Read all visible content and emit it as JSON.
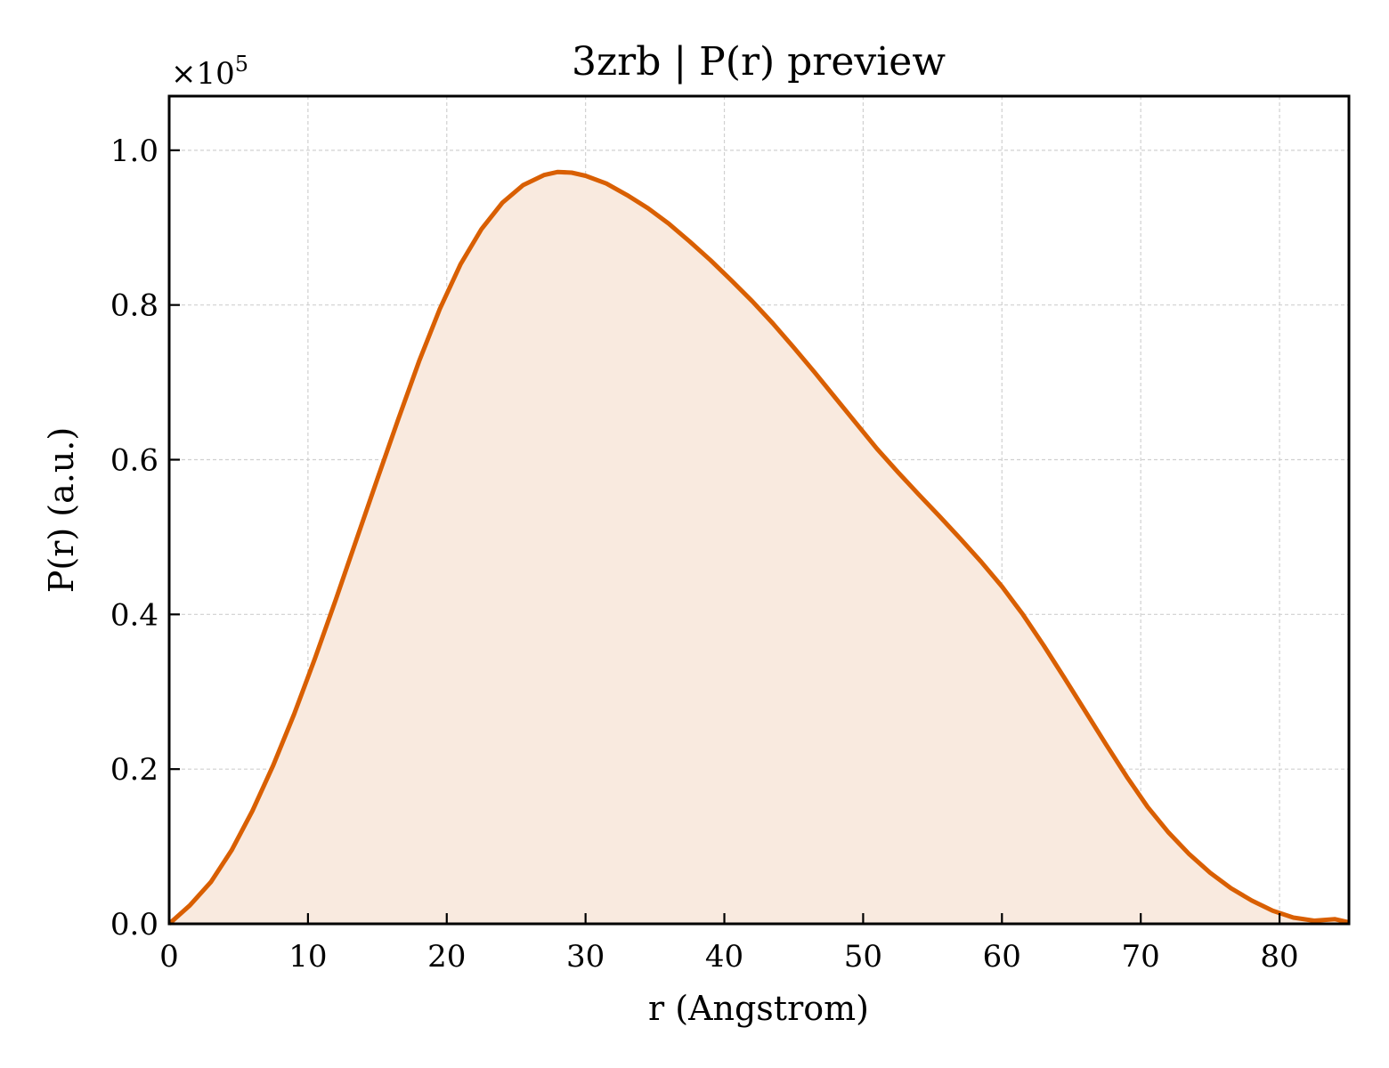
{
  "chart_data": {
    "type": "area",
    "title": "3zrb | P(r) preview",
    "xlabel": "r (Angstrom)",
    "ylabel": "P(r) (a.u.)",
    "y_multiplier_base": "×10",
    "y_multiplier_exp": "5",
    "xlim": [
      0,
      85
    ],
    "ylim": [
      0,
      1.07
    ],
    "x_ticks": [
      0,
      10,
      20,
      30,
      40,
      50,
      60,
      70,
      80
    ],
    "x_tick_labels": [
      "0",
      "10",
      "20",
      "30",
      "40",
      "50",
      "60",
      "70",
      "80"
    ],
    "y_ticks": [
      0,
      0.2,
      0.4,
      0.6,
      0.8,
      1.0
    ],
    "y_tick_labels": [
      "0.0",
      "0.2",
      "0.4",
      "0.6",
      "0.8",
      "1.0"
    ],
    "grid": true,
    "line_color": "#d95f02",
    "fill_color": "#f9eadf",
    "series": [
      {
        "x": [
          0,
          1.5,
          3,
          4.5,
          6,
          7.5,
          9,
          10.5,
          12,
          13.5,
          15,
          16.5,
          18,
          19.5,
          21,
          22.5,
          24,
          25.5,
          27,
          28,
          29,
          30,
          31.5,
          33,
          34.5,
          36,
          37.5,
          39,
          40.5,
          42,
          43.5,
          45,
          46.5,
          48,
          49.5,
          51,
          52.5,
          54,
          55.5,
          57,
          58.5,
          60,
          61.5,
          63,
          64.5,
          66,
          67.5,
          69,
          70.5,
          72,
          73.5,
          75,
          76.5,
          78,
          79.5,
          81,
          82.5,
          84,
          85
        ],
        "y": [
          0.0,
          0.024,
          0.054,
          0.095,
          0.146,
          0.205,
          0.271,
          0.343,
          0.419,
          0.497,
          0.575,
          0.652,
          0.727,
          0.795,
          0.853,
          0.898,
          0.932,
          0.955,
          0.968,
          0.972,
          0.971,
          0.967,
          0.957,
          0.942,
          0.925,
          0.905,
          0.882,
          0.858,
          0.832,
          0.805,
          0.776,
          0.745,
          0.713,
          0.68,
          0.647,
          0.614,
          0.584,
          0.555,
          0.527,
          0.498,
          0.468,
          0.436,
          0.4,
          0.36,
          0.318,
          0.275,
          0.232,
          0.19,
          0.151,
          0.118,
          0.09,
          0.066,
          0.046,
          0.03,
          0.017,
          0.008,
          0.004,
          0.006,
          0.002
        ]
      }
    ]
  }
}
